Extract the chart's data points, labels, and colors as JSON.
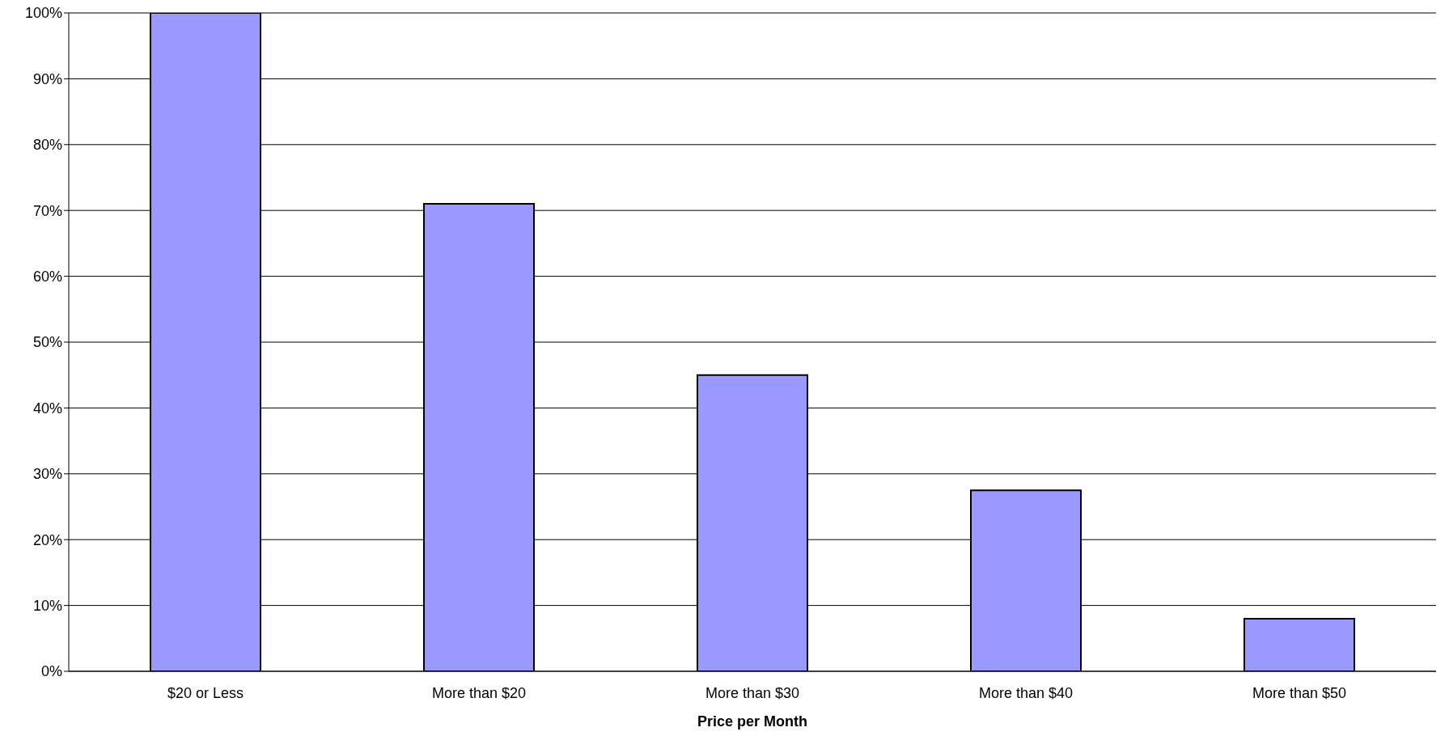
{
  "chart_data": {
    "type": "bar",
    "xlabel": "Price per Month",
    "categories": [
      "$20 or Less",
      "More than $20",
      "More than $30",
      "More than $40",
      "More than $50"
    ],
    "values": [
      100,
      71,
      45,
      27.5,
      8
    ],
    "color": "#9999ff",
    "ylim": [
      0,
      100
    ],
    "yticks": [
      {
        "value": 0,
        "label": "0%"
      },
      {
        "value": 10,
        "label": "10%"
      },
      {
        "value": 20,
        "label": "20%"
      },
      {
        "value": 30,
        "label": "30%"
      },
      {
        "value": 40,
        "label": "40%"
      },
      {
        "value": 50,
        "label": "50%"
      },
      {
        "value": 60,
        "label": "60%"
      },
      {
        "value": 70,
        "label": "70%"
      },
      {
        "value": 80,
        "label": "80%"
      },
      {
        "value": 90,
        "label": "90%"
      },
      {
        "value": 100,
        "label": "100%"
      }
    ],
    "grid": "y",
    "legend": false
  }
}
